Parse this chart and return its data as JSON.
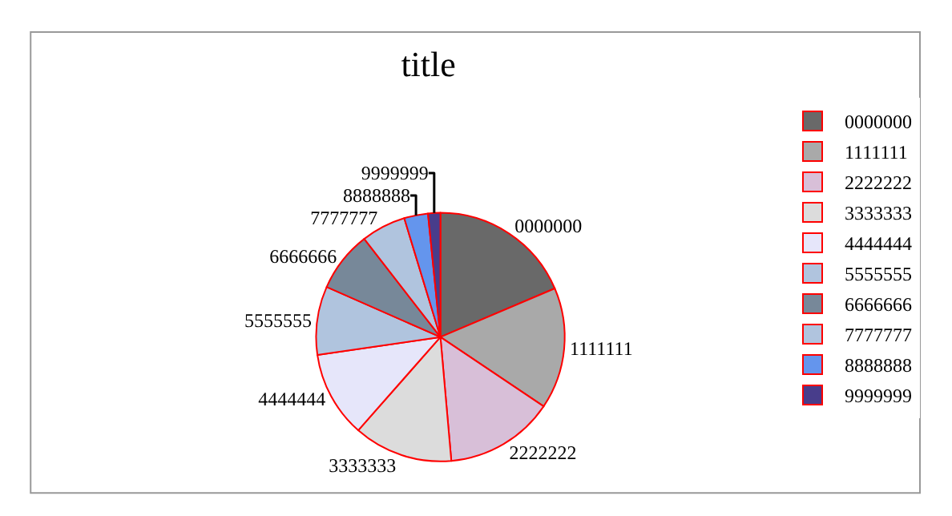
{
  "chart_data": {
    "type": "pie",
    "title": "title",
    "categories": [
      "0000000",
      "1111111",
      "2222222",
      "3333333",
      "4444444",
      "5555555",
      "6666666",
      "7777777",
      "8888888",
      "9999999"
    ],
    "values": [
      18.6,
      15.8,
      14.2,
      12.9,
      11.2,
      8.9,
      7.9,
      5.8,
      3.1,
      1.6
    ],
    "colors": [
      "#696969",
      "#a9a9a9",
      "#d8bfd8",
      "#dcdcdc",
      "#e6e6fa",
      "#b0c4de",
      "#778899",
      "#b0c4de",
      "#6495ed",
      "#483d8b"
    ],
    "legend": "right"
  }
}
